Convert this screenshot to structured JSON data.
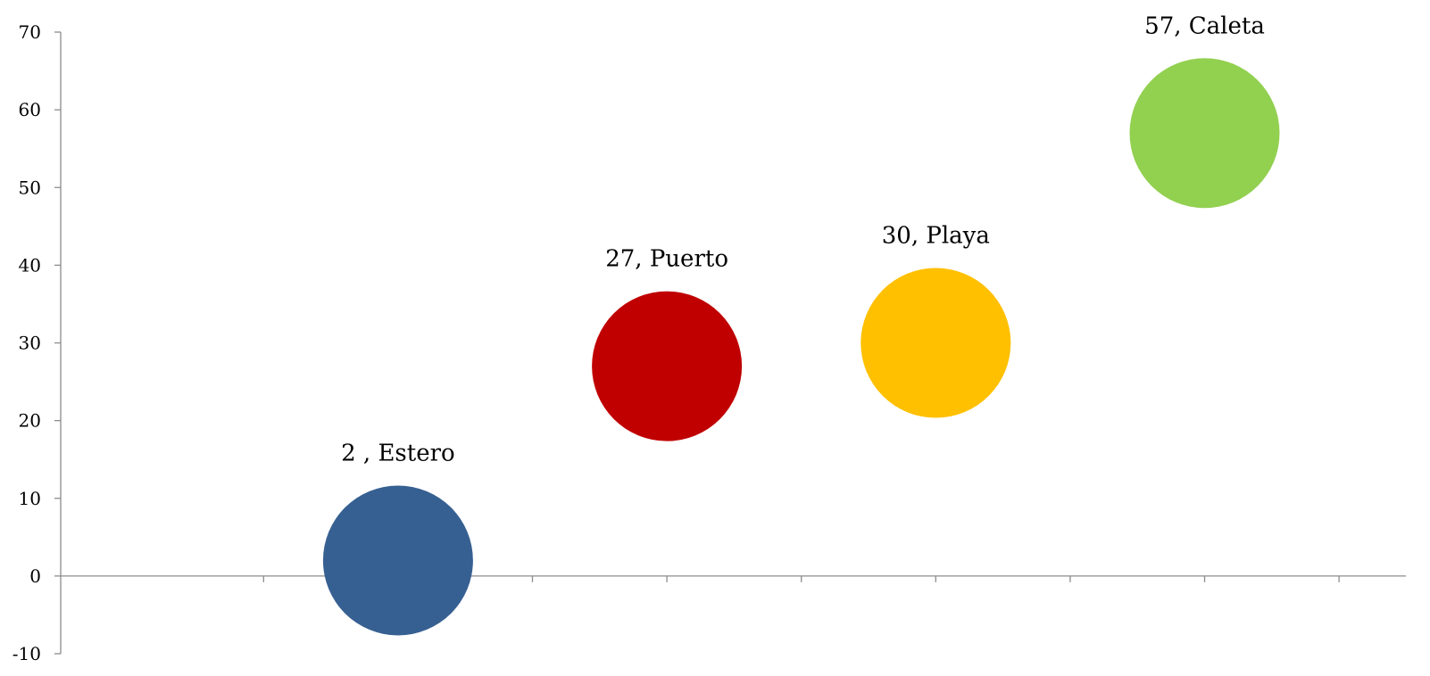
{
  "chart_data": {
    "type": "scatter",
    "title": "",
    "xlabel": "",
    "ylabel": "",
    "xlim": [
      0,
      5
    ],
    "ylim": [
      -10,
      70
    ],
    "y_ticks": [
      70,
      60,
      50,
      40,
      30,
      20,
      10,
      0,
      -10
    ],
    "grid": false,
    "legend": "none",
    "points": [
      {
        "x": 1,
        "y": 2,
        "label": "2 , Estero",
        "color": "#376092"
      },
      {
        "x": 2,
        "y": 27,
        "label": "27,  Puerto",
        "color": "#C00000"
      },
      {
        "x": 3,
        "y": 30,
        "label": "30,  Playa",
        "color": "#FFC000"
      },
      {
        "x": 4,
        "y": 57,
        "label": "57,  Caleta",
        "color": "#92D050"
      }
    ]
  }
}
